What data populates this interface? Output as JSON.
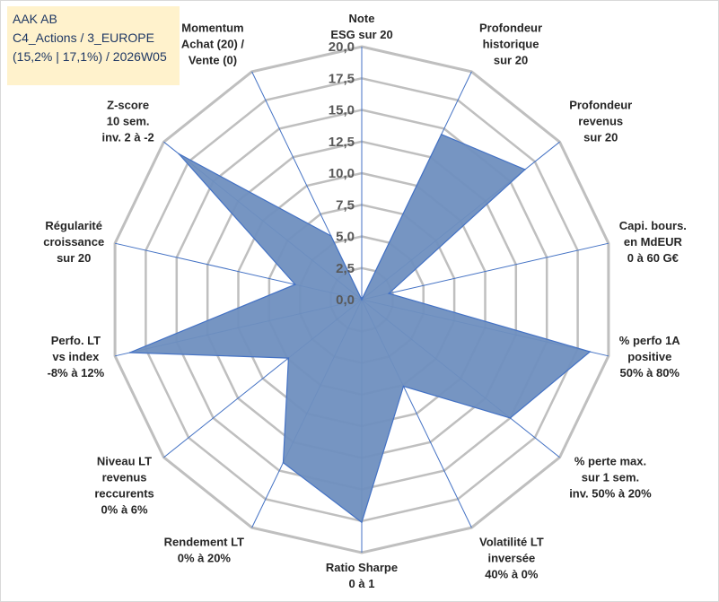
{
  "title": {
    "line1": "AAK AB",
    "line2": "C4_Actions / 3_EUROPE",
    "line3": "(15,2% | 17,1%) / 2026W05"
  },
  "chart_data": {
    "type": "radar",
    "rmax": 20,
    "grid_levels": [
      2.5,
      5,
      7.5,
      10,
      12.5,
      15,
      17.5,
      20
    ],
    "tick_labels": [
      "0,0",
      "2,5",
      "5,0",
      "7,5",
      "10,0",
      "12,5",
      "15,0",
      "17,5",
      "20,0"
    ],
    "colors": {
      "fill": "#6f8fbf",
      "stroke": "#4472c4",
      "grid": "#bfbfbf",
      "spoke": "#4472c4"
    },
    "axes": [
      {
        "label": [
          "Note",
          "ESG sur 20"
        ],
        "value": 0
      },
      {
        "label": [
          "Profondeur",
          "historique",
          "sur 20"
        ],
        "value": 14.5
      },
      {
        "label": [
          "Profondeur",
          "revenus",
          "sur 20"
        ],
        "value": 16.5
      },
      {
        "label": [
          "Capi. bours.",
          "en MdEUR",
          "0 à 60 G€"
        ],
        "value": 2.2
      },
      {
        "label": [
          "% perfo 1A",
          "positive",
          "50% à 80%"
        ],
        "value": 18.5
      },
      {
        "label": [
          "% perte max.",
          "sur 1 sem.",
          "inv. 50% à 20%"
        ],
        "value": 15
      },
      {
        "label": [
          "Volatilité LT",
          "inversée",
          "40% à 0%"
        ],
        "value": 7.6
      },
      {
        "label": [
          "Ratio Sharpe",
          "0 à 1"
        ],
        "value": 17.6
      },
      {
        "label": [
          "Rendement LT",
          "0% à 20%"
        ],
        "value": 14.3
      },
      {
        "label": [
          "Niveau LT",
          "revenus",
          "reccurents",
          "0% à 6%"
        ],
        "value": 7.4
      },
      {
        "label": [
          "Perfo. LT",
          "vs index",
          "-8% à 12%"
        ],
        "value": 18.8
      },
      {
        "label": [
          "Régularité",
          "croissance",
          "sur 20"
        ],
        "value": 5.4
      },
      {
        "label": [
          "Z-score",
          "10 sem.",
          "inv. 2 à -2"
        ],
        "value": 18.5
      },
      {
        "label": [
          "Momentum",
          "Achat (20) /",
          "Vente (0)"
        ],
        "value": 5.6
      }
    ]
  }
}
